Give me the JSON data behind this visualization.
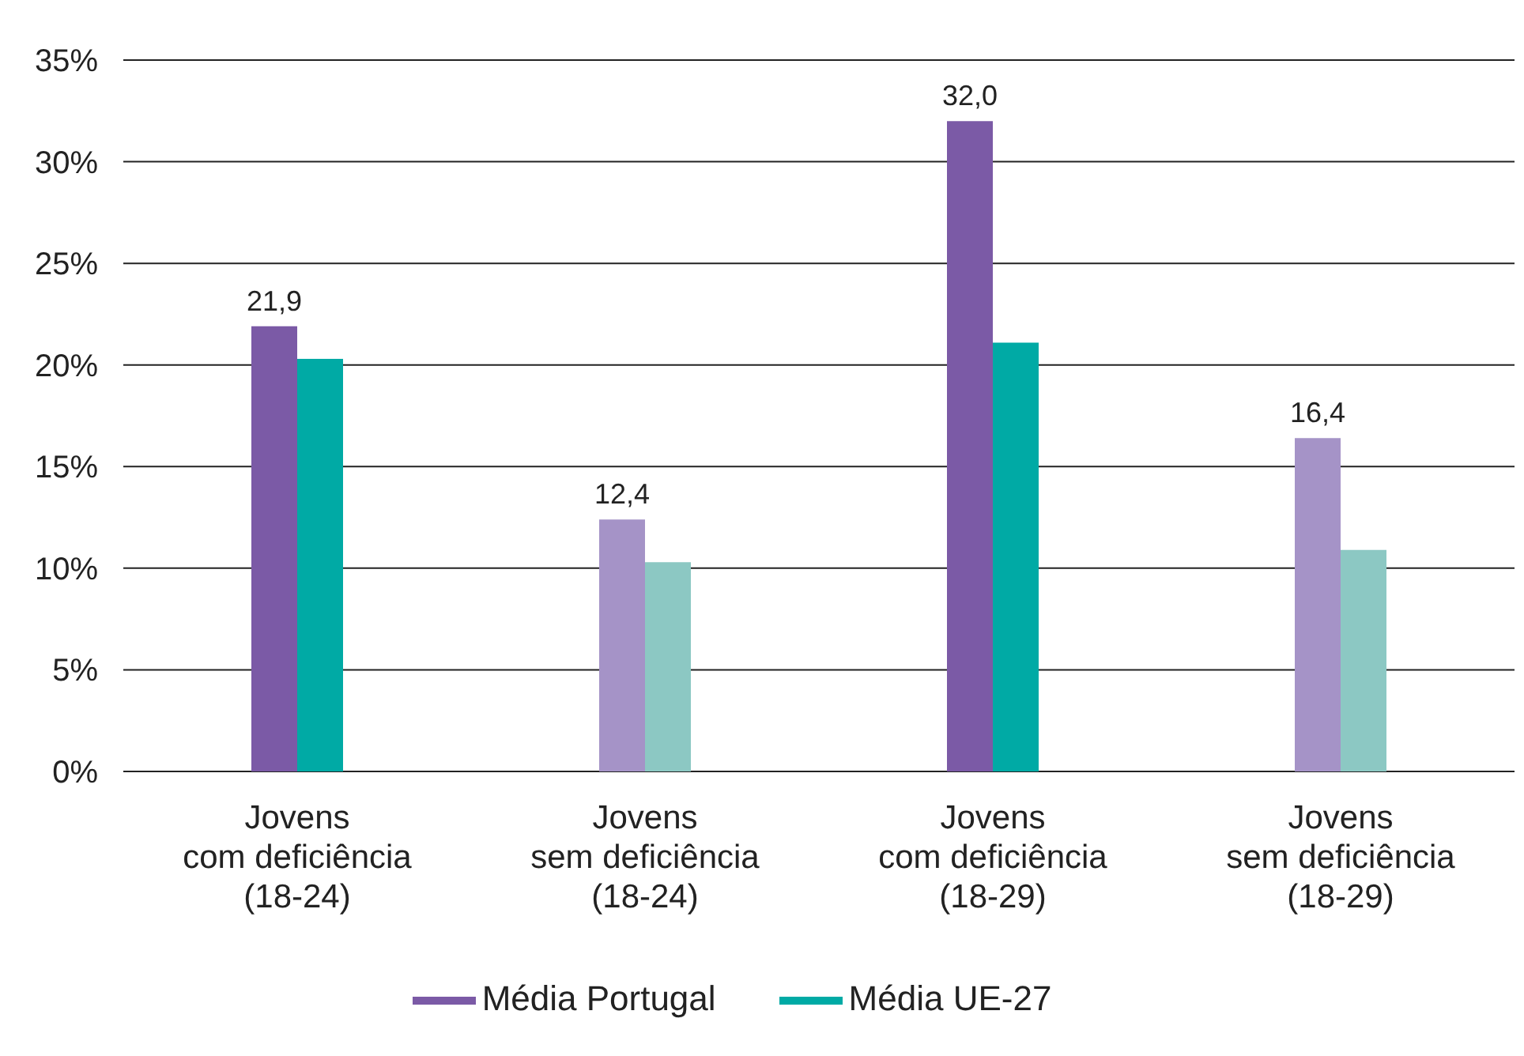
{
  "chart_data": {
    "type": "bar",
    "categories": [
      "Jovens\ncom deficiência\n(18-24)",
      "Jovens\nsem deficiência\n(18-24)",
      "Jovens\ncom deficiência\n(18-29)",
      "Jovens\nsem deficiência\n(18-29)"
    ],
    "series": [
      {
        "name": "Média Portugal",
        "color": "#7b5aa6",
        "colors": [
          "#7b5aa6",
          "#a593c7",
          "#7b5aa6",
          "#a593c7"
        ],
        "values": [
          21.9,
          12.4,
          32.0,
          16.4
        ],
        "value_labels": [
          "21,9",
          "12,4",
          "32,0",
          "16,4"
        ]
      },
      {
        "name": "Média UE-27",
        "color": "#00aaa5",
        "colors": [
          "#00aaa5",
          "#8cc8c3",
          "#00aaa5",
          "#8cc8c3"
        ],
        "values": [
          20.3,
          10.3,
          21.1,
          10.9
        ]
      }
    ],
    "ylim": [
      0,
      35
    ],
    "yticks": [
      {
        "value": 0,
        "label": "0%"
      },
      {
        "value": 5,
        "label": "5%"
      },
      {
        "value": 10,
        "label": "10%"
      },
      {
        "value": 15,
        "label": "15%"
      },
      {
        "value": 20,
        "label": "20%"
      },
      {
        "value": 25,
        "label": "25%"
      },
      {
        "value": 30,
        "label": "30%"
      },
      {
        "value": 35,
        "label": "35%"
      }
    ],
    "grid": "y",
    "legend": "bottom"
  }
}
